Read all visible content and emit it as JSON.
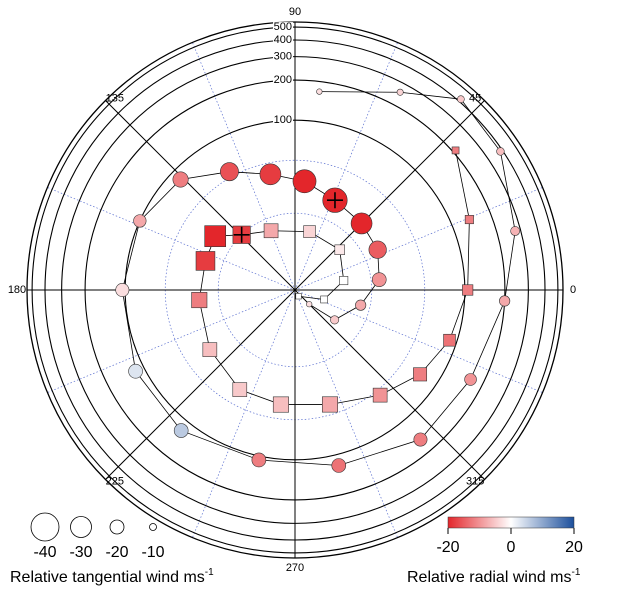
{
  "chart_data": {
    "type": "polar-bubble",
    "r_scale": "log",
    "rlim": [
      5.3,
      546
    ],
    "rticks": [
      100,
      200,
      300,
      400,
      500
    ],
    "minor_rticks": [
      20,
      50
    ],
    "thetaticks": [
      0,
      45,
      90,
      135,
      180,
      225,
      270,
      315
    ],
    "series": [
      {
        "marker": "circle",
        "theta": [
          83,
          62,
          49,
          34,
          15,
          357,
          333,
          310,
          284,
          258,
          231,
          207,
          180,
          156,
          136,
          119,
          102,
          85,
          66,
          45,
          26,
          7,
          347,
          323,
          315
        ],
        "r": [
          168,
          255,
          420,
          385,
          273,
          200,
          160,
          155,
          121,
          107,
          121,
          117,
          105,
          100,
          83,
          55,
          41,
          35,
          29,
          27,
          26,
          23,
          17,
          12.5,
          7.5
        ],
        "tangential": [
          -8,
          -9,
          -10,
          -11,
          -13,
          -15,
          -17,
          -19,
          -20,
          -20,
          -20,
          -20,
          -19,
          -18,
          -22,
          -26,
          -30,
          -33,
          -35,
          -30,
          -25,
          -20,
          -15,
          -12,
          -8
        ],
        "radial": [
          -3,
          -4,
          -5,
          -6,
          -7,
          -8,
          -10,
          -12,
          -13,
          -12,
          6,
          3,
          -3,
          -8,
          -12,
          -16,
          -18,
          -20,
          -22,
          -20,
          -15,
          -10,
          -8,
          -5,
          -3
        ]
      },
      {
        "marker": "square",
        "theta": [
          41,
          22,
          0,
          342,
          326,
          309,
          287,
          263,
          241,
          215,
          186,
          162,
          146,
          134,
          112,
          76,
          42,
          11,
          342,
          300
        ],
        "r": [
          210,
          137,
          105,
          88,
          72,
          55,
          42,
          39,
          38,
          32,
          28,
          27,
          28,
          20,
          16,
          15,
          15,
          12.5,
          9,
          6
        ],
        "tangential": [
          -10,
          -12,
          -15,
          -17,
          -19,
          -20,
          -22,
          -22,
          -20,
          -20,
          -22,
          -27,
          -30,
          -25,
          -20,
          -17,
          -14,
          -12,
          -10,
          -8
        ],
        "radial": [
          -12,
          -12,
          -12,
          -13,
          -12,
          -10,
          -8,
          -6,
          -5,
          -6,
          -12,
          -18,
          -20,
          -18,
          -8,
          -4,
          -2,
          0,
          0,
          0
        ]
      }
    ],
    "size_legend": {
      "values": [
        -40,
        -30,
        -20,
        -10
      ],
      "label": "Relative tangential wind ms",
      "label_sup": "-1"
    },
    "colorbar": {
      "colors": [
        "#e3262b",
        "#ffffff",
        "#1c4f9c"
      ],
      "lim": [
        -20,
        20
      ],
      "ticks": [
        -20,
        0,
        20
      ],
      "label": "Relative radial wind ms",
      "label_sup": "-1"
    }
  }
}
